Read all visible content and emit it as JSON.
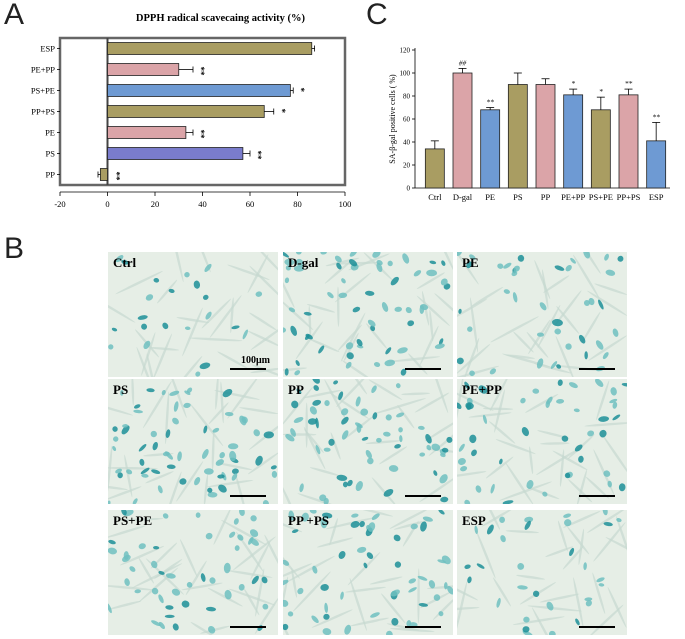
{
  "panels": {
    "a": "A",
    "b": "B",
    "c": "C"
  },
  "chart_data": [
    {
      "type": "bar",
      "orientation": "horizontal",
      "title": "DPPH radical scavecaing activity (%)",
      "categories": [
        "ESP",
        "PE+PP",
        "PS+PE",
        "PP+PS",
        "PE",
        "PS",
        "PP"
      ],
      "values": [
        86,
        30,
        77,
        66,
        33,
        57,
        -3
      ],
      "errors": [
        1.2,
        6,
        1.2,
        4,
        3,
        3,
        1
      ],
      "annotations": [
        "",
        "**",
        "*",
        "*",
        "**",
        "**",
        "**"
      ],
      "colors": [
        "#a99d62",
        "#dba4a8",
        "#6e9ad3",
        "#a99d62",
        "#dba4a8",
        "#7a7ccc",
        "#a99d62"
      ],
      "xlim": [
        -20,
        100
      ],
      "xticks": [
        -20,
        0,
        20,
        40,
        60,
        80,
        100
      ],
      "grid": false
    },
    {
      "type": "bar",
      "title": "",
      "categories": [
        "Ctrl",
        "D-gal",
        "PE",
        "PS",
        "PP",
        "PE+PP",
        "PS+PE",
        "PP+PS",
        "ESP"
      ],
      "values": [
        34,
        100,
        68,
        90,
        90,
        81,
        68,
        81,
        41
      ],
      "errors": [
        7,
        4,
        2,
        10,
        5,
        5,
        11,
        5,
        16
      ],
      "annotations": [
        "",
        "##",
        "**",
        "",
        "",
        "*",
        "*",
        "**",
        "**"
      ],
      "colors": [
        "#a99d62",
        "#dba4a8",
        "#6e9ad3",
        "#a99d62",
        "#dba4a8",
        "#6e9ad3",
        "#a99d62",
        "#dba4a8",
        "#6e9ad3"
      ],
      "ylabel": "SA-β-gal positive cells ( %)",
      "ylim": [
        0,
        120
      ],
      "yticks": [
        0,
        20,
        40,
        60,
        80,
        100,
        120
      ],
      "grid": false
    }
  ],
  "micrographs": {
    "scale_label": "100μm",
    "tiles": [
      {
        "label": "Ctrl",
        "density": 22,
        "seed": 3
      },
      {
        "label": "D-gal",
        "density": 60,
        "seed": 7
      },
      {
        "label": "PE",
        "density": 40,
        "seed": 11
      },
      {
        "label": "PS",
        "density": 62,
        "seed": 13
      },
      {
        "label": "PP",
        "density": 58,
        "seed": 17
      },
      {
        "label": "PE+PP",
        "density": 45,
        "seed": 19
      },
      {
        "label": "PS+PE",
        "density": 48,
        "seed": 23
      },
      {
        "label": "PP +PS",
        "density": 55,
        "seed": 29
      },
      {
        "label": "ESP",
        "density": 30,
        "seed": 31
      }
    ]
  }
}
